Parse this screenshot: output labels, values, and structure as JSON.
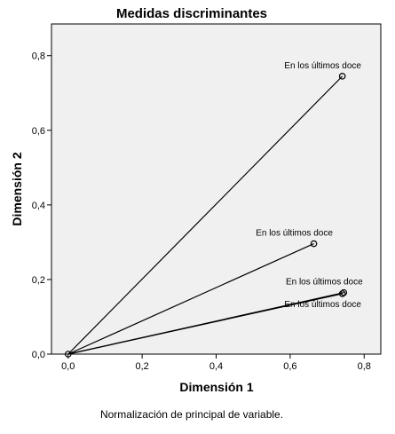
{
  "chart_data": {
    "type": "scatter",
    "title": "Medidas discriminantes",
    "xlabel": "Dimensión 1",
    "ylabel": "Dimensión 2",
    "xlim": [
      -0.045,
      0.845
    ],
    "ylim": [
      0,
      0.885
    ],
    "xticks": [
      0.0,
      0.2,
      0.4,
      0.6,
      0.8
    ],
    "yticks": [
      0.0,
      0.2,
      0.4,
      0.6,
      0.8
    ],
    "tick_labels_x": [
      "0,0",
      "0,2",
      "0,4",
      "0,6",
      "0,8"
    ],
    "tick_labels_y": [
      "0,0",
      "0,2",
      "0,4",
      "0,6",
      "0,8"
    ],
    "grid": false,
    "plot_background": "#f0f0f0",
    "lines_from_origin": true,
    "points": [
      {
        "label": "En los últimos doce",
        "x": 0.741,
        "y": 0.745,
        "label_pos": "above"
      },
      {
        "label": "En los últimos doce",
        "x": 0.664,
        "y": 0.296,
        "label_pos": "above"
      },
      {
        "label": "En los últimos doce",
        "x": 0.745,
        "y": 0.165,
        "label_pos": "above"
      },
      {
        "label": "En los últimos doce",
        "x": 0.741,
        "y": 0.162,
        "label_pos": "below"
      }
    ],
    "origin": {
      "x": 0.0,
      "y": 0.0
    }
  },
  "footnote": "Normalización de principal de variable."
}
